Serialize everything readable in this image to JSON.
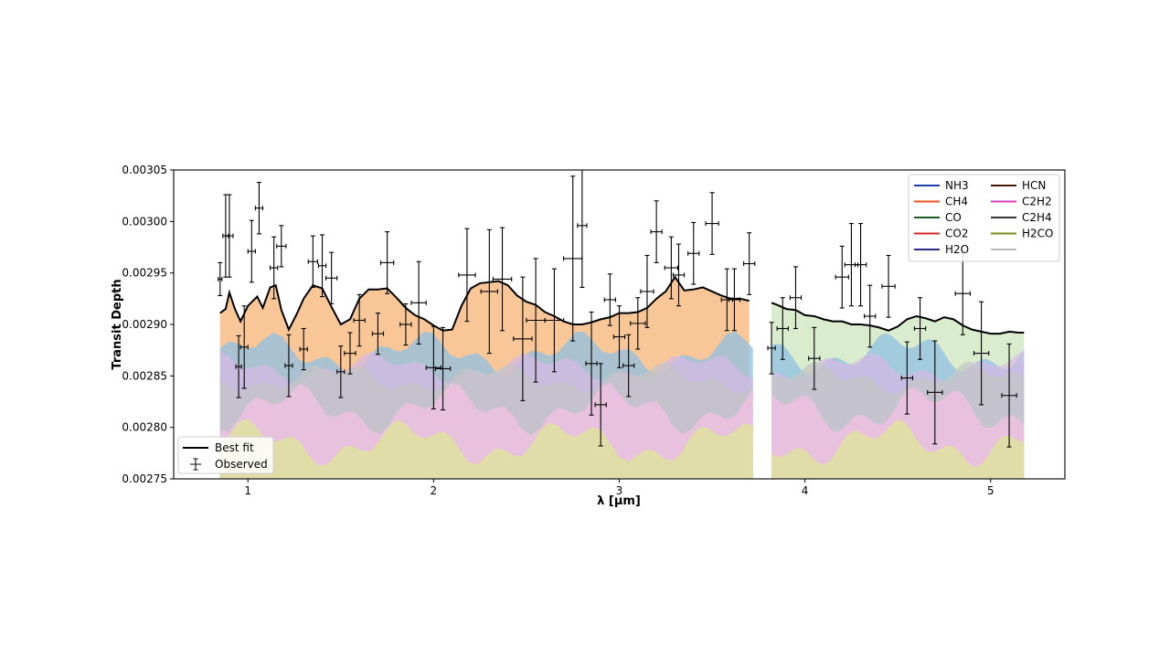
{
  "chart_data": {
    "type": "line",
    "title": "",
    "xlabel": "λ [μm]",
    "ylabel": "Transit Depth",
    "xlim": [
      0.6,
      5.4
    ],
    "ylim": [
      0.00275,
      0.00305
    ],
    "x_ticks": [
      1,
      2,
      3,
      4,
      5
    ],
    "y_ticks": [
      0.00275,
      0.0028,
      0.00285,
      0.0029,
      0.00295,
      0.003,
      0.00305
    ],
    "y_tick_labels": [
      "0.00275",
      "0.00280",
      "0.00285",
      "0.00290",
      "0.00295",
      "0.00300",
      "0.00305"
    ],
    "gap": [
      3.72,
      3.82
    ],
    "best_fit": {
      "name": "Best fit",
      "color": "#000000",
      "x": [
        0.85,
        0.88,
        0.9,
        0.93,
        0.96,
        1.0,
        1.05,
        1.08,
        1.12,
        1.15,
        1.18,
        1.22,
        1.26,
        1.3,
        1.35,
        1.4,
        1.45,
        1.5,
        1.55,
        1.6,
        1.65,
        1.7,
        1.75,
        1.8,
        1.85,
        1.9,
        1.95,
        2.0,
        2.05,
        2.1,
        2.15,
        2.2,
        2.25,
        2.3,
        2.35,
        2.4,
        2.45,
        2.5,
        2.55,
        2.6,
        2.65,
        2.7,
        2.75,
        2.8,
        2.85,
        2.9,
        2.95,
        3.0,
        3.05,
        3.1,
        3.15,
        3.2,
        3.25,
        3.3,
        3.35,
        3.4,
        3.45,
        3.5,
        3.55,
        3.6,
        3.65,
        3.7
      ],
      "y": [
        0.002911,
        0.002915,
        0.002931,
        0.002915,
        0.002903,
        0.002918,
        0.002927,
        0.002916,
        0.002936,
        0.002938,
        0.002914,
        0.002895,
        0.002909,
        0.002925,
        0.002938,
        0.002935,
        0.002917,
        0.0029,
        0.002905,
        0.002925,
        0.002934,
        0.002934,
        0.002935,
        0.002926,
        0.002916,
        0.002909,
        0.002905,
        0.002899,
        0.002894,
        0.002895,
        0.002918,
        0.002935,
        0.00294,
        0.002941,
        0.002942,
        0.002938,
        0.002928,
        0.002922,
        0.002919,
        0.002912,
        0.002908,
        0.002903,
        0.0029,
        0.0029,
        0.002902,
        0.002905,
        0.002907,
        0.002911,
        0.002911,
        0.002912,
        0.002916,
        0.002925,
        0.002932,
        0.002946,
        0.002933,
        0.002934,
        0.002936,
        0.002932,
        0.002928,
        0.002925,
        0.002925,
        0.002923
      ]
    },
    "best_fit_2": {
      "x": [
        3.82,
        3.85,
        3.9,
        3.95,
        4.0,
        4.05,
        4.1,
        4.15,
        4.2,
        4.25,
        4.3,
        4.35,
        4.4,
        4.45,
        4.5,
        4.55,
        4.6,
        4.65,
        4.7,
        4.75,
        4.8,
        4.85,
        4.9,
        4.95,
        5.0,
        5.05,
        5.1,
        5.15,
        5.18
      ],
      "y": [
        0.002921,
        0.002919,
        0.002915,
        0.002914,
        0.002909,
        0.002908,
        0.002905,
        0.002903,
        0.002903,
        0.0029,
        0.0029,
        0.002899,
        0.002897,
        0.002894,
        0.002898,
        0.002905,
        0.002908,
        0.002906,
        0.002903,
        0.002907,
        0.002905,
        0.002899,
        0.002895,
        0.002893,
        0.002891,
        0.002891,
        0.002893,
        0.002892,
        0.002892
      ]
    },
    "observed": {
      "name": "Observed",
      "color": "#000000",
      "points": [
        [
          0.85,
          0.002944,
          1.6e-05,
          0.01
        ],
        [
          0.88,
          0.002986,
          4e-05,
          0.015
        ],
        [
          0.9,
          0.002986,
          4e-05,
          0.02
        ],
        [
          0.95,
          0.002859,
          3e-05,
          0.015
        ],
        [
          0.98,
          0.002878,
          4e-05,
          0.02
        ],
        [
          1.02,
          0.002971,
          3e-05,
          0.02
        ],
        [
          1.06,
          0.003013,
          2.5e-05,
          0.02
        ],
        [
          1.14,
          0.002955,
          3e-05,
          0.02
        ],
        [
          1.18,
          0.002976,
          2e-05,
          0.025
        ],
        [
          1.22,
          0.00286,
          3e-05,
          0.02
        ],
        [
          1.3,
          0.002876,
          2e-05,
          0.02
        ],
        [
          1.35,
          0.002961,
          2.5e-05,
          0.025
        ],
        [
          1.4,
          0.002957,
          3e-05,
          0.02
        ],
        [
          1.45,
          0.002945,
          2.5e-05,
          0.03
        ],
        [
          1.5,
          0.002854,
          2.5e-05,
          0.02
        ],
        [
          1.55,
          0.002872,
          2e-05,
          0.03
        ],
        [
          1.6,
          0.002904,
          2.5e-05,
          0.03
        ],
        [
          1.7,
          0.002891,
          2e-05,
          0.03
        ],
        [
          1.75,
          0.00296,
          3e-05,
          0.035
        ],
        [
          1.85,
          0.0029,
          2e-05,
          0.03
        ],
        [
          1.92,
          0.002921,
          4e-05,
          0.04
        ],
        [
          2.0,
          0.002858,
          4e-05,
          0.04
        ],
        [
          2.05,
          0.002857,
          4e-05,
          0.04
        ],
        [
          2.18,
          0.002948,
          4.5e-05,
          0.045
        ],
        [
          2.3,
          0.002932,
          6e-05,
          0.045
        ],
        [
          2.37,
          0.002944,
          5e-05,
          0.05
        ],
        [
          2.48,
          0.002886,
          6e-05,
          0.05
        ],
        [
          2.55,
          0.002904,
          6e-05,
          0.05
        ],
        [
          2.65,
          0.002904,
          5e-05,
          0.05
        ],
        [
          2.75,
          0.002964,
          8e-05,
          0.05
        ],
        [
          2.8,
          0.002996,
          6e-05,
          0.025
        ],
        [
          2.85,
          0.002862,
          5e-05,
          0.03
        ],
        [
          2.9,
          0.002822,
          4e-05,
          0.03
        ],
        [
          2.95,
          0.002924,
          2.5e-05,
          0.03
        ],
        [
          3.0,
          0.002888,
          3e-05,
          0.03
        ],
        [
          3.05,
          0.00286,
          3e-05,
          0.03
        ],
        [
          3.1,
          0.002901,
          2.5e-05,
          0.04
        ],
        [
          3.15,
          0.002932,
          3.5e-05,
          0.035
        ],
        [
          3.2,
          0.00299,
          3e-05,
          0.03
        ],
        [
          3.28,
          0.002955,
          3e-05,
          0.035
        ],
        [
          3.32,
          0.002948,
          3e-05,
          0.03
        ],
        [
          3.4,
          0.002969,
          3e-05,
          0.03
        ],
        [
          3.5,
          0.002998,
          3e-05,
          0.035
        ],
        [
          3.58,
          0.002924,
          3e-05,
          0.03
        ],
        [
          3.62,
          0.002924,
          3e-05,
          0.03
        ],
        [
          3.7,
          0.002959,
          3e-05,
          0.03
        ],
        [
          3.82,
          0.002877,
          2.5e-05,
          0.02
        ],
        [
          3.88,
          0.002896,
          3e-05,
          0.03
        ],
        [
          3.95,
          0.002926,
          3e-05,
          0.03
        ],
        [
          4.05,
          0.002867,
          3e-05,
          0.03
        ],
        [
          4.2,
          0.002946,
          3e-05,
          0.035
        ],
        [
          4.25,
          0.002958,
          4e-05,
          0.035
        ],
        [
          4.3,
          0.002958,
          4e-05,
          0.03
        ],
        [
          4.35,
          0.002908,
          3e-05,
          0.03
        ],
        [
          4.45,
          0.002937,
          3e-05,
          0.035
        ],
        [
          4.55,
          0.002848,
          3.5e-05,
          0.03
        ],
        [
          4.62,
          0.002896,
          3e-05,
          0.03
        ],
        [
          4.7,
          0.002834,
          5e-05,
          0.04
        ],
        [
          4.85,
          0.00293,
          4e-05,
          0.04
        ],
        [
          4.95,
          0.002872,
          5e-05,
          0.04
        ],
        [
          5.1,
          0.002831,
          5e-05,
          0.04
        ]
      ]
    },
    "legend": [
      {
        "label": "NH3",
        "color": "#1f3fa8"
      },
      {
        "label": "CH4",
        "color": "#e8531c"
      },
      {
        "label": "CO",
        "color": "#1a5c25"
      },
      {
        "label": "CO2",
        "color": "#d62728"
      },
      {
        "label": "H2O",
        "color": "#2b2a8a"
      },
      {
        "label": "HCN",
        "color": "#4a1a0c"
      },
      {
        "label": "C2H2",
        "color": "#d03fc0"
      },
      {
        "label": "C2H4",
        "color": "#333333"
      },
      {
        "label": "H2CO",
        "color": "#7a8a1a"
      },
      {
        "label": "",
        "color": "#bbbbbb"
      }
    ],
    "legend_loc": "top-right",
    "lower_legend": [
      {
        "label": "Best fit",
        "kind": "line"
      },
      {
        "label": "Observed",
        "kind": "errorbar"
      }
    ],
    "lower_legend_loc": "lower-left"
  }
}
